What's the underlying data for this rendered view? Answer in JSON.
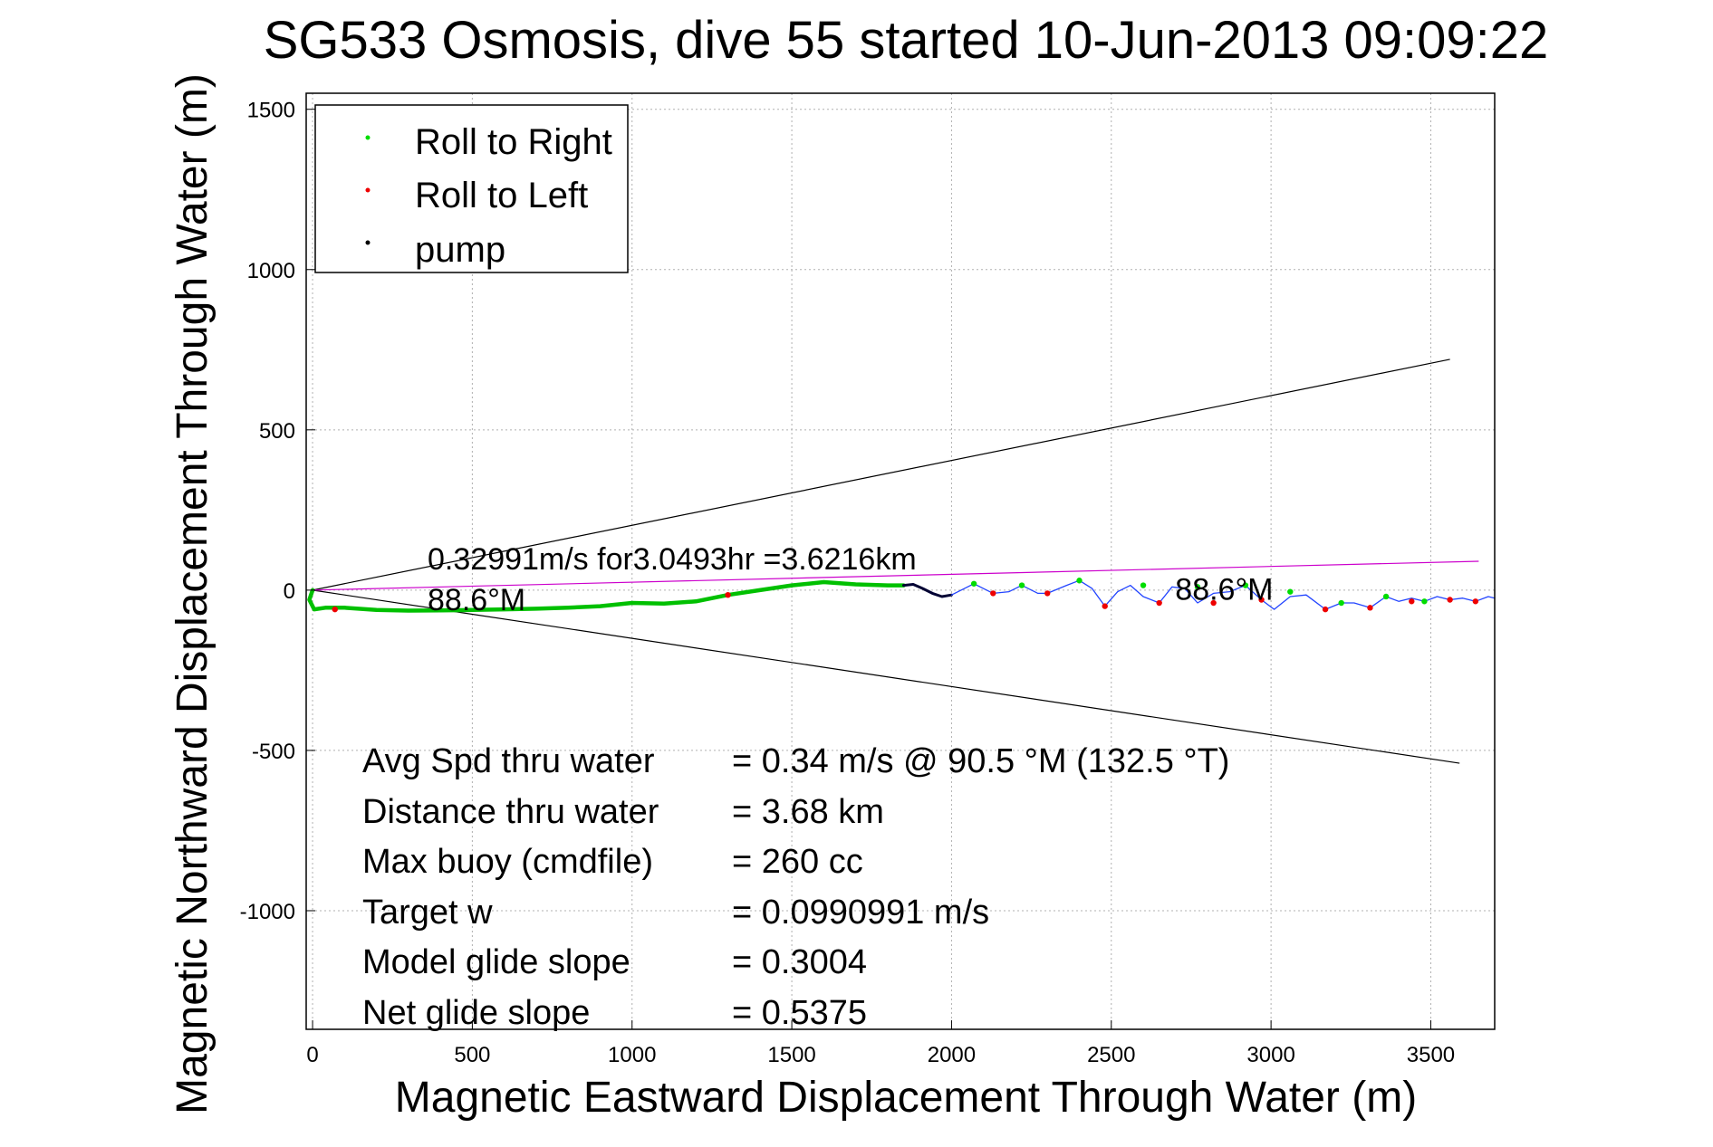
{
  "chart_data": {
    "type": "line",
    "title": "SG533 Osmosis, dive 55 started 10-Jun-2013 09:09:22",
    "xlabel": "Magnetic Eastward Displacement Through Water (m)",
    "ylabel": "Magnetic Northward Displacement Through Water (m)",
    "xlim": [
      -20,
      3700
    ],
    "ylim": [
      -1370,
      1550
    ],
    "xticks": [
      0,
      500,
      1000,
      1500,
      2000,
      2500,
      3000,
      3500
    ],
    "yticks": [
      1500,
      1000,
      500,
      0,
      -500,
      -1000
    ],
    "grid": true,
    "legend_position": "top-left",
    "legend": [
      {
        "label": "Roll to Right",
        "color": "#00dd00"
      },
      {
        "label": "Roll to Left",
        "color": "#ee0000"
      },
      {
        "label": "pump",
        "color": "#000000"
      }
    ],
    "series": [
      {
        "name": "Roll to Right",
        "role": "trajectory-main",
        "color": "#00c000",
        "x": [
          0,
          -10,
          5,
          40,
          100,
          200,
          300,
          400,
          500,
          600,
          700,
          800,
          900,
          1000,
          1100,
          1200,
          1300,
          1400,
          1500,
          1600,
          1700,
          1800,
          1850
        ],
        "y": [
          0,
          -30,
          -60,
          -55,
          -55,
          -62,
          -64,
          -63,
          -62,
          -60,
          -58,
          -55,
          -50,
          -40,
          -42,
          -35,
          -15,
          0,
          15,
          25,
          18,
          15,
          15
        ]
      },
      {
        "name": "pump",
        "color": "#000033",
        "x": [
          1850,
          1880,
          1910,
          1940,
          1970,
          2000
        ],
        "y": [
          15,
          18,
          5,
          -10,
          -20,
          -15
        ]
      },
      {
        "name": "trajectory-wiggle",
        "color": "#2244ff",
        "x": [
          2000,
          2070,
          2130,
          2180,
          2220,
          2270,
          2300,
          2360,
          2400,
          2440,
          2480,
          2520,
          2560,
          2600,
          2650,
          2690,
          2730,
          2770,
          2820,
          2870,
          2920,
          2970,
          3010,
          3060,
          3110,
          3170,
          3220,
          3260,
          3310,
          3360,
          3400,
          3440,
          3480,
          3520,
          3560,
          3600,
          3640,
          3680,
          3700
        ],
        "y": [
          -15,
          20,
          -10,
          -5,
          15,
          -10,
          -10,
          15,
          30,
          5,
          -50,
          -5,
          15,
          -20,
          -40,
          10,
          5,
          -40,
          -10,
          -5,
          15,
          -30,
          -60,
          -20,
          -15,
          -60,
          -40,
          -40,
          -55,
          -20,
          -35,
          -25,
          -35,
          -20,
          -30,
          -25,
          -35,
          -20,
          -25
        ]
      }
    ],
    "markers": {
      "roll_right": {
        "color": "#00dd00",
        "x": [
          2070,
          2220,
          2400,
          2600,
          2770,
          2920,
          3060,
          3220,
          3360,
          3480
        ],
        "y": [
          20,
          15,
          30,
          15,
          10,
          15,
          -5,
          -40,
          -20,
          -35
        ]
      },
      "roll_left": {
        "color": "#ee0000",
        "x": [
          70,
          1300,
          2130,
          2300,
          2480,
          2650,
          2820,
          2970,
          3170,
          3310,
          3440,
          3560,
          3640
        ],
        "y": [
          -60,
          -15,
          -10,
          -10,
          -50,
          -40,
          -40,
          -30,
          -60,
          -55,
          -35,
          -30,
          -35
        ]
      }
    },
    "reference_lines": [
      {
        "name": "cone-upper",
        "color": "#000000",
        "x": [
          0,
          3560
        ],
        "y": [
          0,
          720
        ]
      },
      {
        "name": "cone-lower",
        "color": "#000000",
        "x": [
          0,
          3590
        ],
        "y": [
          0,
          -540
        ]
      },
      {
        "name": "heading-line",
        "color": "#cc00cc",
        "x": [
          0,
          3650
        ],
        "y": [
          0,
          90
        ]
      }
    ],
    "annotations": [
      {
        "text": "0.32991m/s for3.0493hr =3.6216km",
        "x": 360,
        "y": 65
      },
      {
        "text": "88.6°M",
        "x": 360,
        "y": -62
      },
      {
        "text": "88.6°M",
        "x": 2700,
        "y": -30
      }
    ],
    "stats": [
      {
        "label": "Avg Spd thru water",
        "value": "=  0.34 m/s @  90.5 °M (132.5 °T)"
      },
      {
        "label": "Distance thru water",
        "value": "=  3.68 km"
      },
      {
        "label": "Max buoy (cmdfile)",
        "value": "= 260 cc"
      },
      {
        "label": "Target w",
        "value": "= 0.0990991 m/s"
      },
      {
        "label": "Model glide slope",
        "value": "= 0.3004"
      },
      {
        "label": "Net glide slope",
        "value": "= 0.5375"
      }
    ]
  }
}
